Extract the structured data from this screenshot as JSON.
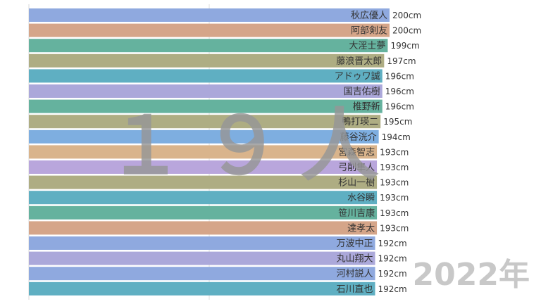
{
  "chart_data": {
    "type": "bar",
    "orientation": "horizontal",
    "unit": "cm",
    "categories": [
      "秋広優人",
      "阿部剣友",
      "大淫士夢",
      "藤浪晋太郎",
      "アドゥワ誠",
      "国吉佑樹",
      "椎野新",
      "鴨打瑛二",
      "藤谷洸介",
      "宮森智志",
      "弓削隼人",
      "杉山一樹",
      "水谷瞬",
      "笹川吉康",
      "達孝太",
      "万波中正",
      "丸山翔大",
      "河村説人",
      "石川直也"
    ],
    "values": [
      200,
      200,
      199,
      197,
      196,
      196,
      196,
      195,
      194,
      193,
      193,
      193,
      193,
      193,
      193,
      192,
      192,
      192,
      192
    ],
    "value_labels": [
      "200cm",
      "200cm",
      "199cm",
      "197cm",
      "196cm",
      "196cm",
      "196cm",
      "195cm",
      "194cm",
      "193cm",
      "193cm",
      "193cm",
      "193cm",
      "193cm",
      "193cm",
      "192cm",
      "192cm",
      "192cm",
      "192cm"
    ],
    "bar_colors": [
      "#8fa9df",
      "#d5a589",
      "#65b29e",
      "#aead83",
      "#5fafc2",
      "#aba8da",
      "#65b29e",
      "#aead83",
      "#7eaee0",
      "#d9b48c",
      "#b9a6dc",
      "#aead83",
      "#5fafc2",
      "#65b29e",
      "#d5a589",
      "#8fa9df",
      "#aba8da",
      "#8fa9df",
      "#5fafc2"
    ],
    "grid": true,
    "legend": "none"
  },
  "overlay": {
    "count_label": "１９人",
    "year_label": "2022年"
  }
}
